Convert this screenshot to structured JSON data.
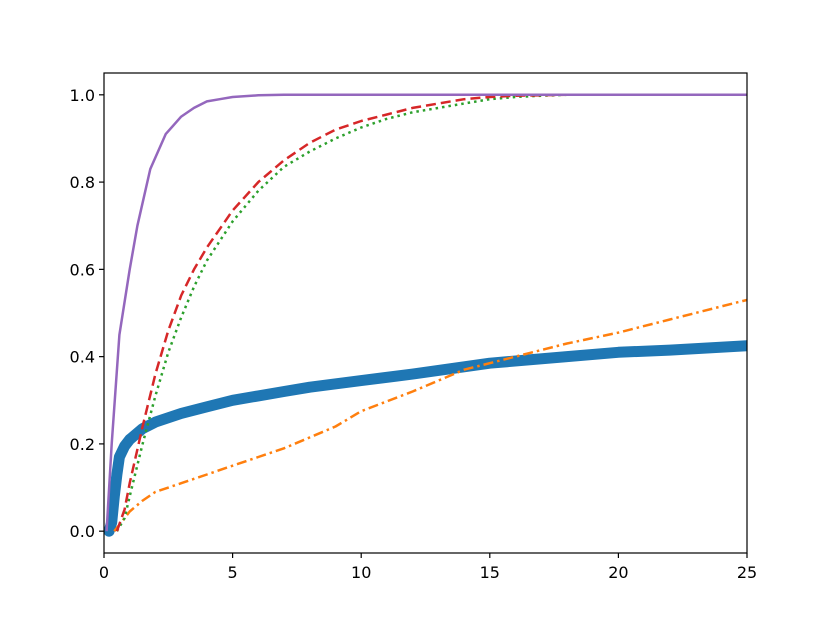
{
  "chart_data": {
    "type": "line",
    "title": "",
    "xlabel": "",
    "ylabel": "",
    "xlim": [
      0,
      25
    ],
    "ylim": [
      -0.05,
      1.05
    ],
    "grid": false,
    "legend": "none",
    "x_ticks": [
      {
        "value": 0,
        "label": "0"
      },
      {
        "value": 5,
        "label": "5"
      },
      {
        "value": 10,
        "label": "10"
      },
      {
        "value": 15,
        "label": "15"
      },
      {
        "value": 20,
        "label": "20"
      },
      {
        "value": 25,
        "label": "25"
      }
    ],
    "y_ticks": [
      {
        "value": 0.0,
        "label": "0.0"
      },
      {
        "value": 0.2,
        "label": "0.2"
      },
      {
        "value": 0.4,
        "label": "0.4"
      },
      {
        "value": 0.6,
        "label": "0.6"
      },
      {
        "value": 0.8,
        "label": "0.8"
      },
      {
        "value": 1.0,
        "label": "1.0"
      }
    ],
    "series": [
      {
        "color": "#1f77b4",
        "style": "solid",
        "width": 11,
        "x": [
          0.2,
          0.3,
          0.4,
          0.5,
          0.6,
          0.8,
          1.0,
          1.5,
          2,
          3,
          4,
          5,
          6,
          7,
          8,
          10,
          12,
          15,
          18,
          20,
          22,
          25
        ],
        "y": [
          0.0,
          0.02,
          0.08,
          0.13,
          0.17,
          0.195,
          0.21,
          0.235,
          0.25,
          0.27,
          0.285,
          0.3,
          0.31,
          0.32,
          0.33,
          0.345,
          0.36,
          0.385,
          0.4,
          0.41,
          0.415,
          0.425
        ]
      },
      {
        "color": "#ff7f0e",
        "style": "dashdot",
        "width": 2.5,
        "x": [
          0.4,
          0.8,
          1.0,
          1.5,
          2,
          3,
          4,
          5,
          6,
          7,
          8,
          9,
          10,
          12,
          14,
          16,
          18,
          20,
          22,
          25
        ],
        "y": [
          0.0,
          0.03,
          0.045,
          0.07,
          0.09,
          0.11,
          0.13,
          0.15,
          0.17,
          0.19,
          0.215,
          0.24,
          0.275,
          0.32,
          0.37,
          0.4,
          0.43,
          0.455,
          0.485,
          0.53
        ]
      },
      {
        "color": "#2ca02c",
        "style": "dotted",
        "width": 2.5,
        "x": [
          0.5,
          0.8,
          1.0,
          1.5,
          2,
          2.5,
          3,
          3.5,
          4,
          5,
          6,
          7,
          8,
          9,
          10,
          11,
          12,
          13,
          14,
          15,
          16,
          17,
          18,
          20,
          25
        ],
        "y": [
          0.0,
          0.03,
          0.08,
          0.2,
          0.31,
          0.41,
          0.49,
          0.56,
          0.62,
          0.71,
          0.78,
          0.835,
          0.87,
          0.9,
          0.925,
          0.945,
          0.96,
          0.97,
          0.98,
          0.99,
          0.995,
          0.998,
          1.0,
          1.0,
          1.0
        ]
      },
      {
        "color": "#d62728",
        "style": "dashed",
        "width": 2.5,
        "x": [
          0.5,
          0.8,
          1.0,
          1.5,
          2,
          2.5,
          3,
          3.5,
          4,
          5,
          6,
          7,
          8,
          9,
          10,
          11,
          12,
          13,
          14,
          15,
          16,
          18,
          20,
          25
        ],
        "y": [
          0.0,
          0.05,
          0.11,
          0.24,
          0.36,
          0.46,
          0.54,
          0.6,
          0.65,
          0.735,
          0.8,
          0.85,
          0.89,
          0.92,
          0.94,
          0.955,
          0.97,
          0.98,
          0.99,
          0.995,
          0.998,
          1.0,
          1.0,
          1.0
        ]
      },
      {
        "color": "#9467bd",
        "style": "solid",
        "width": 2.5,
        "x": [
          0.1,
          0.3,
          0.6,
          1.0,
          1.3,
          1.8,
          2.4,
          3.0,
          3.5,
          4,
          4.5,
          5,
          6,
          7,
          10,
          15,
          25
        ],
        "y": [
          0.0,
          0.2,
          0.45,
          0.6,
          0.7,
          0.83,
          0.91,
          0.95,
          0.97,
          0.985,
          0.99,
          0.995,
          0.999,
          1.0,
          1.0,
          1.0,
          1.0
        ]
      }
    ]
  }
}
